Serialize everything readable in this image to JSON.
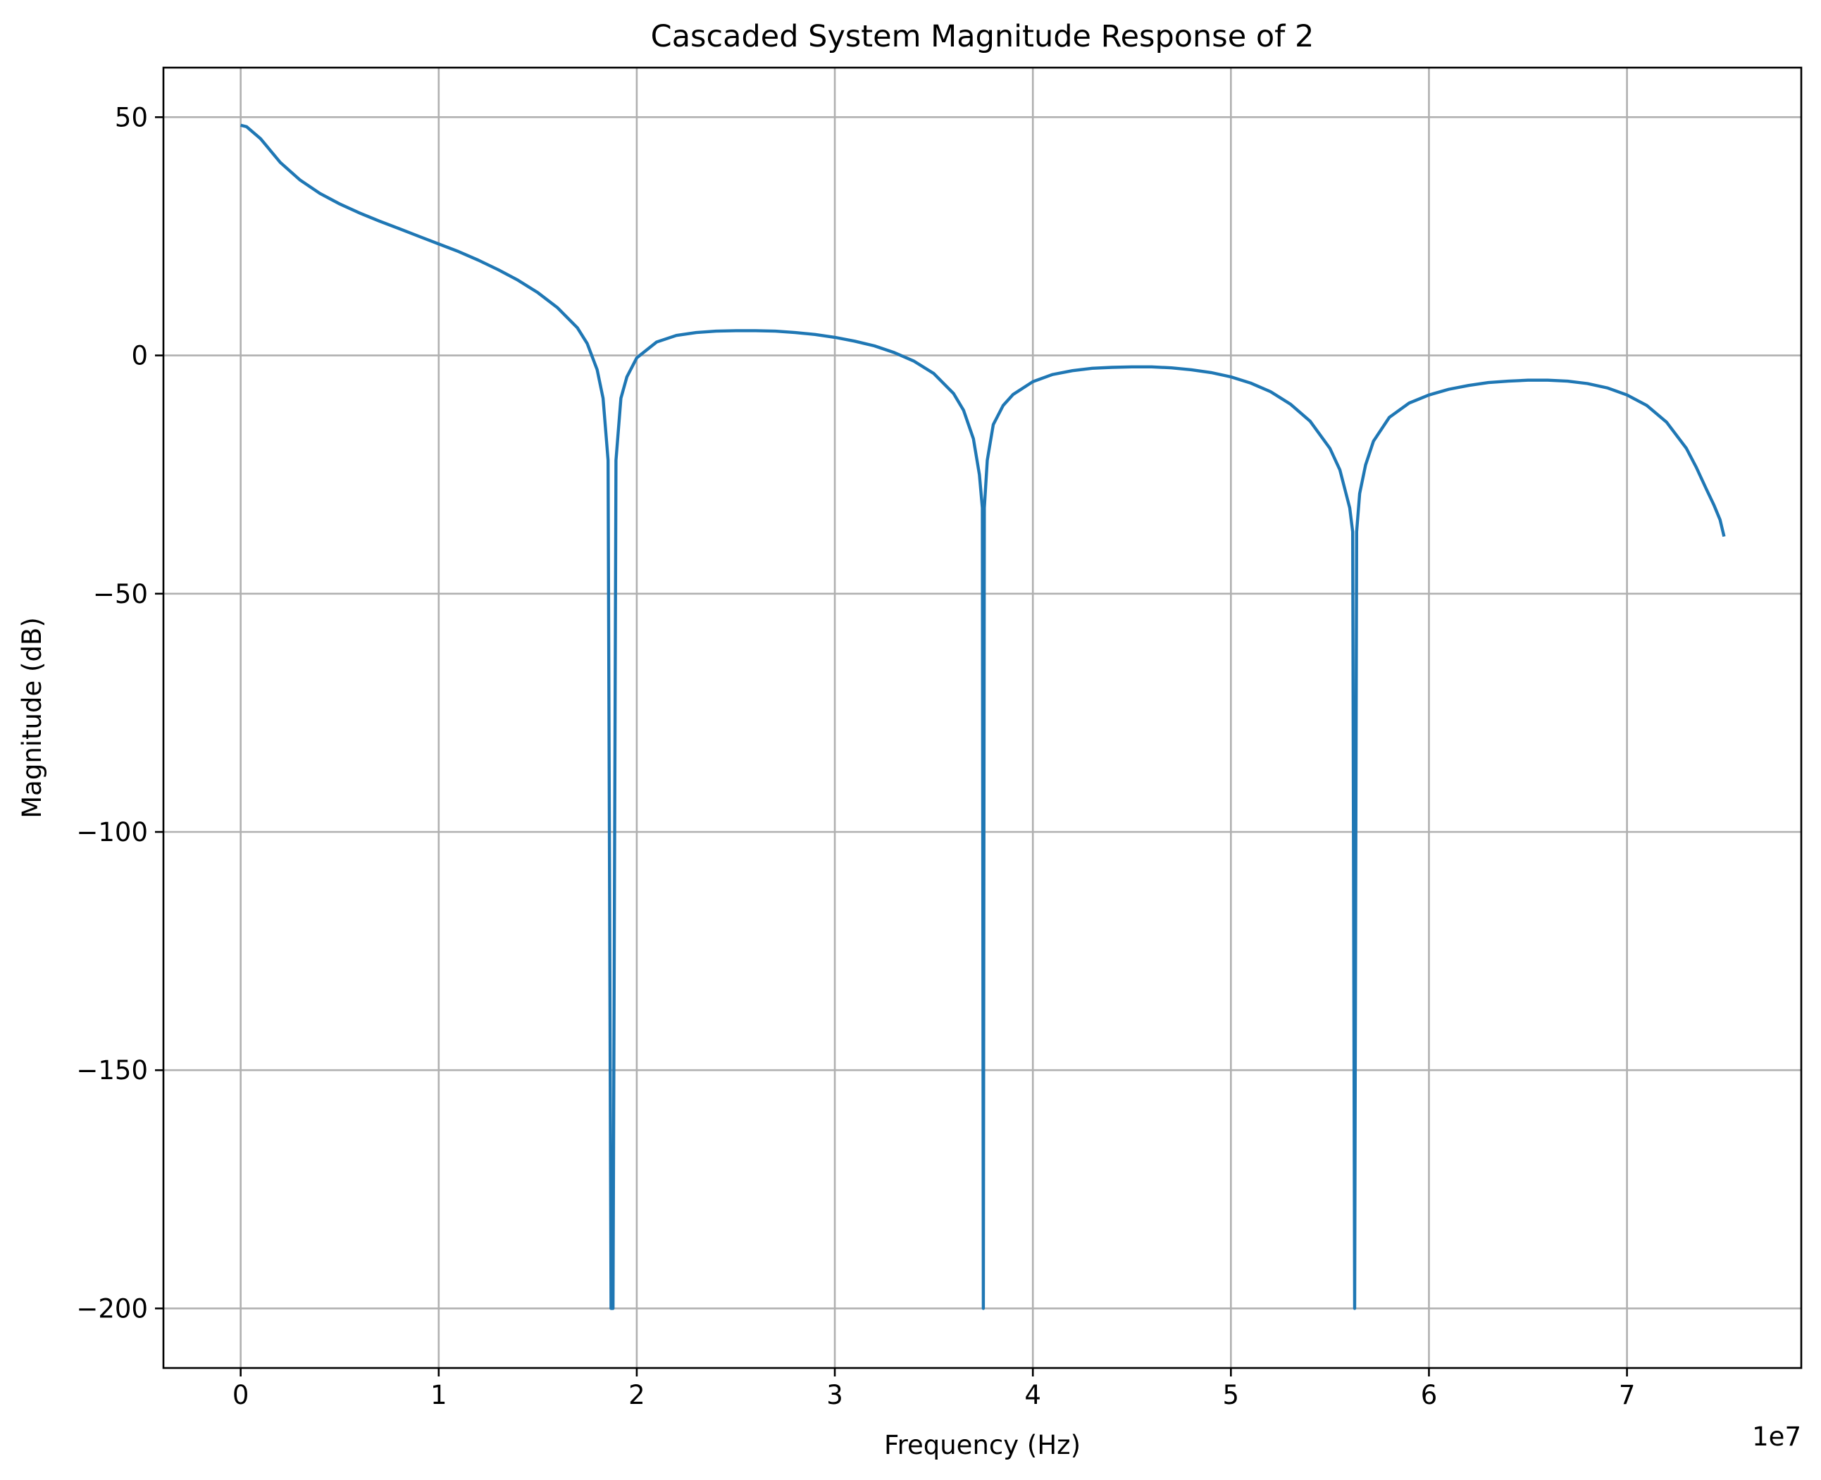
{
  "chart_data": {
    "type": "line",
    "title": "Cascaded System Magnitude Response of 2",
    "xlabel": "Frequency (Hz)",
    "ylabel": "Magnitude (dB)",
    "x_offset_label": "1e7",
    "x_scale": 10000000,
    "xlim": [
      -3900000,
      78800000
    ],
    "ylim": [
      -212.5,
      60.4
    ],
    "grid": true,
    "legend": "none",
    "x_ticks": [
      {
        "value": 0,
        "label": "0"
      },
      {
        "value": 10000000,
        "label": "1"
      },
      {
        "value": 20000000,
        "label": "2"
      },
      {
        "value": 30000000,
        "label": "3"
      },
      {
        "value": 40000000,
        "label": "4"
      },
      {
        "value": 50000000,
        "label": "5"
      },
      {
        "value": 60000000,
        "label": "6"
      },
      {
        "value": 70000000,
        "label": "7"
      }
    ],
    "y_ticks": [
      {
        "value": 50,
        "label": "50"
      },
      {
        "value": 0,
        "label": "0"
      },
      {
        "value": -50,
        "label": "−50"
      },
      {
        "value": -100,
        "label": "−100"
      },
      {
        "value": -150,
        "label": "−150"
      },
      {
        "value": -200,
        "label": "−200"
      }
    ],
    "series": [
      {
        "color": "#1f77b4",
        "x": [
          0,
          300000,
          1000000,
          2000000,
          3000000,
          4000000,
          5000000,
          6000000,
          7000000,
          8000000,
          9000000,
          10000000,
          11000000,
          12000000,
          13000000,
          14000000,
          15000000,
          16000000,
          17000000,
          17500000,
          18000000,
          18300000,
          18550000,
          18700000,
          18750000,
          18800000,
          18950000,
          19200000,
          19500000,
          20000000,
          21000000,
          22000000,
          23000000,
          24000000,
          25000000,
          26000000,
          27000000,
          28000000,
          29000000,
          30000000,
          31000000,
          32000000,
          33000000,
          34000000,
          35000000,
          36000000,
          36500000,
          37000000,
          37300000,
          37450000,
          37500000,
          37550000,
          37700000,
          38000000,
          38500000,
          39000000,
          40000000,
          41000000,
          42000000,
          43000000,
          44000000,
          45000000,
          46000000,
          47000000,
          48000000,
          49000000,
          50000000,
          51000000,
          52000000,
          53000000,
          54000000,
          55000000,
          55500000,
          56000000,
          56150000,
          56250000,
          56350000,
          56500000,
          56800000,
          57200000,
          58000000,
          59000000,
          60000000,
          61000000,
          62000000,
          63000000,
          64000000,
          65000000,
          66000000,
          67000000,
          68000000,
          69000000,
          70000000,
          71000000,
          72000000,
          73000000,
          73500000,
          74000000,
          74400000,
          74700000,
          74900000
        ],
        "y": [
          48.3,
          48.0,
          45.5,
          40.5,
          36.8,
          34.0,
          31.8,
          29.9,
          28.2,
          26.6,
          25.0,
          23.4,
          21.8,
          20.0,
          18.0,
          15.8,
          13.2,
          10.0,
          5.8,
          2.5,
          -3.0,
          -9.0,
          -22.0,
          -200.0,
          -200.0,
          -200.0,
          -22.0,
          -9.0,
          -4.5,
          -0.5,
          2.8,
          4.2,
          4.8,
          5.1,
          5.2,
          5.2,
          5.1,
          4.8,
          4.4,
          3.8,
          3.0,
          2.0,
          0.6,
          -1.2,
          -3.8,
          -8.0,
          -11.5,
          -17.5,
          -25.0,
          -32.0,
          -200.0,
          -32.0,
          -22.0,
          -14.5,
          -10.5,
          -8.2,
          -5.5,
          -4.0,
          -3.2,
          -2.7,
          -2.5,
          -2.4,
          -2.4,
          -2.6,
          -3.0,
          -3.6,
          -4.5,
          -5.8,
          -7.6,
          -10.2,
          -13.8,
          -19.5,
          -24.0,
          -32.0,
          -37.0,
          -200.0,
          -37.0,
          -29.0,
          -23.0,
          -18.0,
          -13.0,
          -10.0,
          -8.3,
          -7.1,
          -6.3,
          -5.7,
          -5.4,
          -5.2,
          -5.2,
          -5.4,
          -5.9,
          -6.8,
          -8.3,
          -10.5,
          -14.0,
          -19.5,
          -23.5,
          -28.0,
          -31.5,
          -34.5,
          -38.0
        ]
      }
    ]
  }
}
